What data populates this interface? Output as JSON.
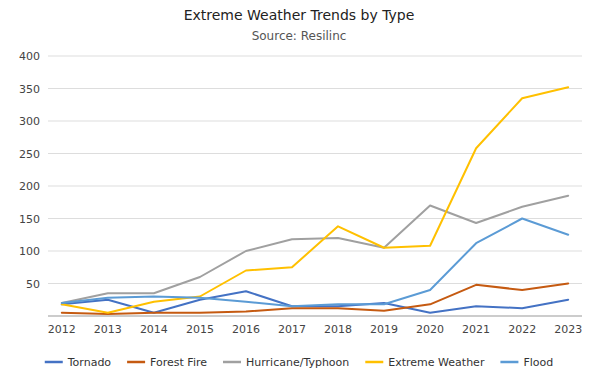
{
  "chart_data": {
    "type": "line",
    "title": "Extreme Weather Trends by Type",
    "subtitle": "Source: Resilinc",
    "x": [
      2012,
      2013,
      2014,
      2015,
      2016,
      2017,
      2018,
      2019,
      2020,
      2021,
      2022,
      2023
    ],
    "xlim": [
      2011.7,
      2023.3
    ],
    "xticks": [
      2012,
      2013,
      2014,
      2015,
      2016,
      2017,
      2018,
      2019,
      2020,
      2021,
      2022,
      2023
    ],
    "ylim": [
      0,
      400
    ],
    "yticks": [
      50,
      100,
      150,
      200,
      250,
      300,
      350,
      400
    ],
    "grid": true,
    "legend": "bottom",
    "series": [
      {
        "name": "Tornado",
        "color": "#4472C4",
        "values": [
          18,
          25,
          5,
          25,
          38,
          15,
          15,
          20,
          5,
          15,
          12,
          25
        ]
      },
      {
        "name": "Forest Fire",
        "color": "#C55A11",
        "values": [
          5,
          3,
          5,
          5,
          7,
          12,
          12,
          8,
          18,
          48,
          40,
          50
        ]
      },
      {
        "name": "Hurricane/Typhoon",
        "color": "#A0A0A0",
        "values": [
          20,
          35,
          35,
          60,
          100,
          118,
          120,
          105,
          170,
          143,
          168,
          185
        ]
      },
      {
        "name": "Extreme Weather",
        "color": "#FFC000",
        "values": [
          18,
          5,
          22,
          30,
          70,
          75,
          138,
          105,
          108,
          258,
          335,
          352
        ]
      },
      {
        "name": "Flood",
        "color": "#5B9BD5",
        "values": [
          20,
          28,
          30,
          28,
          22,
          15,
          18,
          18,
          40,
          112,
          150,
          125
        ]
      }
    ]
  }
}
